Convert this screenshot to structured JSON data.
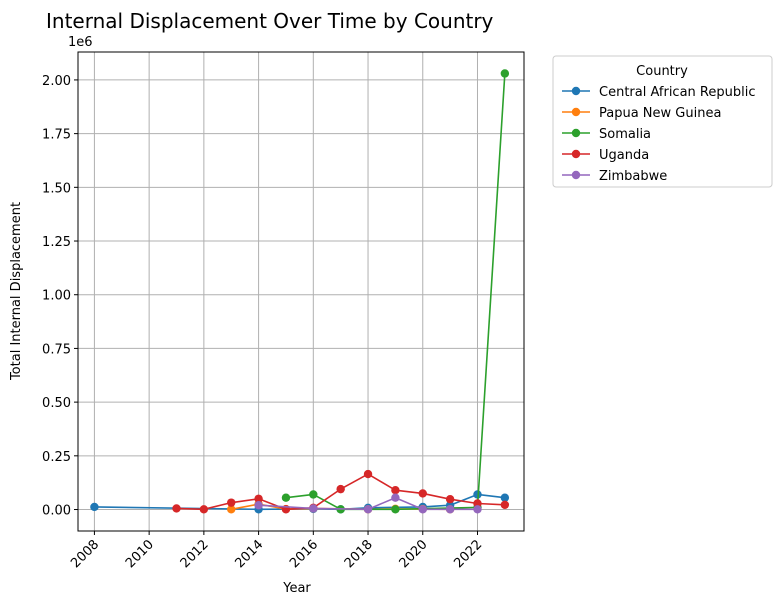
{
  "chart_data": {
    "type": "line",
    "title": "Internal Displacement Over Time by Country",
    "xlabel": "Year",
    "ylabel": "Total Internal Displacement",
    "y_offset_label": "1e6",
    "xlim": [
      2007.4,
      2023.7
    ],
    "ylim": [
      -100000,
      2130000
    ],
    "x_ticks": [
      2008,
      2010,
      2012,
      2014,
      2016,
      2018,
      2020,
      2022
    ],
    "y_ticks": [
      0,
      0.25,
      0.5,
      0.75,
      1.0,
      1.25,
      1.5,
      1.75,
      2.0
    ],
    "y_tick_labels": [
      "0.00",
      "0.25",
      "0.50",
      "0.75",
      "1.00",
      "1.25",
      "1.50",
      "1.75",
      "2.00"
    ],
    "grid": true,
    "legend": {
      "title": "Country",
      "placement": "outside-top-right"
    },
    "series": [
      {
        "name": "Central African Republic",
        "color": "#1f77b4",
        "points": [
          [
            2008,
            12000
          ],
          [
            2014,
            1000
          ],
          [
            2016,
            3000
          ],
          [
            2017,
            1000
          ],
          [
            2018,
            8000
          ],
          [
            2020,
            12000
          ],
          [
            2021,
            20000
          ],
          [
            2022,
            70000
          ],
          [
            2023,
            55000
          ]
        ]
      },
      {
        "name": "Papua New Guinea",
        "color": "#ff7f0e",
        "points": [
          [
            2013,
            1000
          ],
          [
            2014,
            25000
          ],
          [
            2015,
            2000
          ],
          [
            2016,
            5000
          ],
          [
            2018,
            1000
          ],
          [
            2019,
            3000
          ],
          [
            2020,
            2000
          ],
          [
            2021,
            1000
          ]
        ]
      },
      {
        "name": "Somalia",
        "color": "#2ca02c",
        "points": [
          [
            2015,
            55000
          ],
          [
            2016,
            70000
          ],
          [
            2017,
            1000
          ],
          [
            2019,
            1000
          ],
          [
            2022,
            10000
          ],
          [
            2023,
            2030000
          ]
        ]
      },
      {
        "name": "Uganda",
        "color": "#d62728",
        "points": [
          [
            2011,
            5000
          ],
          [
            2012,
            1000
          ],
          [
            2013,
            32000
          ],
          [
            2014,
            50000
          ],
          [
            2015,
            1000
          ],
          [
            2016,
            8000
          ],
          [
            2017,
            95000
          ],
          [
            2018,
            165000
          ],
          [
            2019,
            90000
          ],
          [
            2020,
            75000
          ],
          [
            2021,
            48000
          ],
          [
            2022,
            28000
          ],
          [
            2023,
            22000
          ]
        ]
      },
      {
        "name": "Zimbabwe",
        "color": "#9467bd",
        "points": [
          [
            2014,
            20000
          ],
          [
            2016,
            5000
          ],
          [
            2018,
            1000
          ],
          [
            2019,
            55000
          ],
          [
            2020,
            1000
          ],
          [
            2021,
            1000
          ],
          [
            2022,
            1000
          ]
        ]
      }
    ]
  }
}
